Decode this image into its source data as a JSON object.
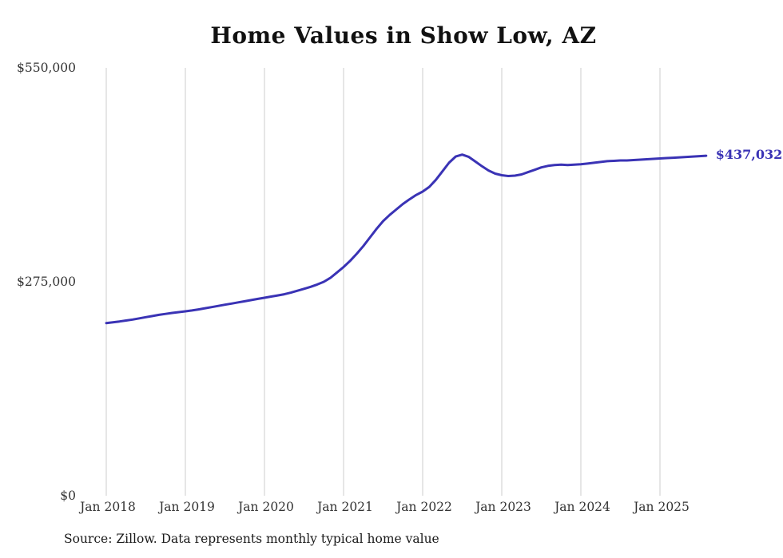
{
  "title": "Home Values in Show Low, AZ",
  "source_note": "Source: Zillow. Data represents monthly typical home value",
  "colors": {
    "line": "#3a33b5",
    "grid": "#cccccc",
    "tick_text": "#333333",
    "title_text": "#111111"
  },
  "chart_data": {
    "type": "line",
    "title": "Home Values in Show Low, AZ",
    "xlabel": "",
    "ylabel": "",
    "x_tick_labels": [
      "Jan 2018",
      "Jan 2019",
      "Jan 2020",
      "Jan 2021",
      "Jan 2022",
      "Jan 2023",
      "Jan 2024",
      "Jan 2025"
    ],
    "y_tick_labels": [
      "$0",
      "$275,000",
      "$550,000"
    ],
    "y_ticks": [
      0,
      275000,
      550000
    ],
    "ylim": [
      0,
      550000
    ],
    "grid": "vertical-only",
    "legend": "none",
    "line_color": "#3a33b5",
    "x_start_month": "2018-01",
    "x_end_month": "2025-08",
    "final_value": 437032,
    "final_value_label": "$437,032",
    "series": [
      {
        "name": "Typical home value",
        "monthly_values": [
          222000,
          223000,
          224000,
          225200,
          226500,
          228000,
          229500,
          231000,
          232500,
          233800,
          235000,
          236000,
          237000,
          238200,
          239500,
          241000,
          242500,
          244000,
          245500,
          247000,
          248500,
          250000,
          251500,
          253000,
          254500,
          256000,
          257500,
          259000,
          261000,
          263500,
          266000,
          268500,
          271500,
          275000,
          280000,
          287000,
          294000,
          302000,
          311000,
          321000,
          332000,
          343000,
          353000,
          361000,
          368000,
          375000,
          381000,
          386500,
          391000,
          397000,
          406000,
          417000,
          428000,
          436000,
          438500,
          435500,
          429500,
          423500,
          418000,
          414000,
          412000,
          411000,
          411500,
          413000,
          416000,
          419000,
          422000,
          424000,
          425000,
          425500,
          425000,
          425500,
          426000,
          427000,
          428000,
          429000,
          430000,
          430500,
          431000,
          431000,
          431500,
          432000,
          432500,
          433000,
          433500,
          434000,
          434500,
          435000,
          435500,
          436000,
          436500,
          437032
        ]
      }
    ]
  }
}
